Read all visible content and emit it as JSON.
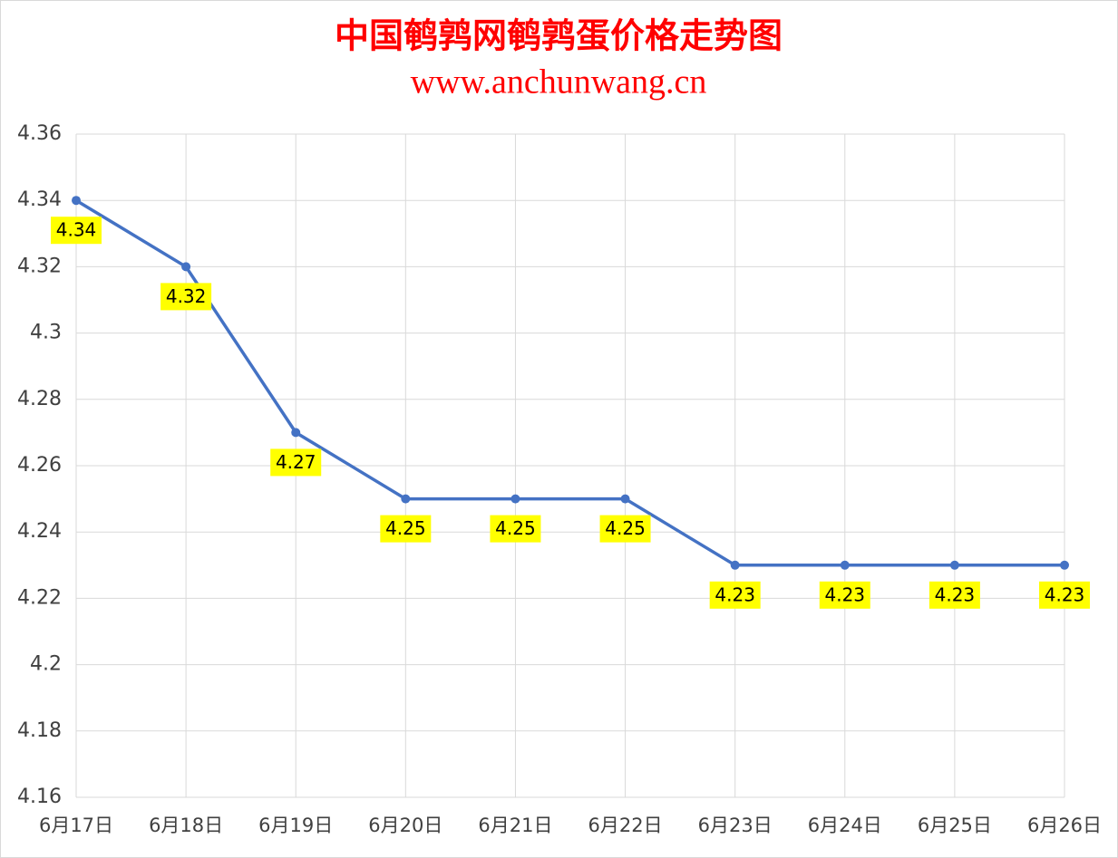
{
  "chart_data": {
    "type": "line",
    "title": "中国鹌鹑网鹌鹑蛋价格走势图",
    "subtitle": "www.anchunwang.cn",
    "categories": [
      "6月17日",
      "6月18日",
      "6月19日",
      "6月20日",
      "6月21日",
      "6月22日",
      "6月23日",
      "6月24日",
      "6月25日",
      "6月26日"
    ],
    "series": [
      {
        "color": "#4472c4",
        "values": [
          4.34,
          4.32,
          4.27,
          4.25,
          4.25,
          4.25,
          4.23,
          4.23,
          4.23,
          4.23
        ]
      }
    ],
    "ylim": [
      4.16,
      4.36
    ],
    "yticks": [
      4.16,
      4.18,
      4.2,
      4.22,
      4.24,
      4.26,
      4.28,
      4.3,
      4.32,
      4.34,
      4.36
    ],
    "grid": true,
    "label_color": "#ffff00",
    "title_color": "#ff0000"
  }
}
